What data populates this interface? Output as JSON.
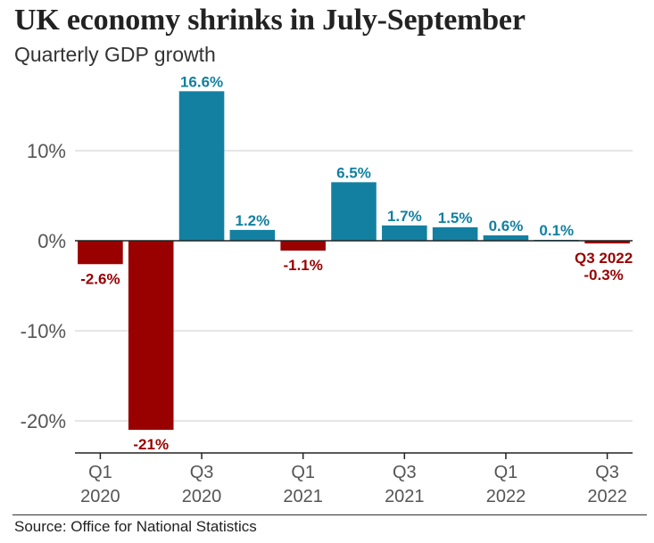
{
  "title": "UK economy shrinks in July-September",
  "subtitle": "Quarterly GDP growth",
  "source": "Source: Office for National Statistics",
  "colors": {
    "positive": "#1380a1",
    "negative": "#990000",
    "grid": "#cccccc",
    "axis": "#222222",
    "tick_text": "#555555"
  },
  "chart_data": {
    "type": "bar",
    "categories": [
      "Q1 2020",
      "Q2 2020",
      "Q3 2020",
      "Q4 2020",
      "Q1 2021",
      "Q2 2021",
      "Q3 2021",
      "Q4 2021",
      "Q1 2022",
      "Q2 2022",
      "Q3 2022"
    ],
    "values": [
      -2.6,
      -21,
      16.6,
      1.2,
      -1.1,
      6.5,
      1.7,
      1.5,
      0.6,
      0.1,
      -0.3
    ],
    "data_labels": [
      "-2.6%",
      "-21%",
      "16.6%",
      "1.2%",
      "-1.1%",
      "6.5%",
      "1.7%",
      "1.5%",
      "0.6%",
      "0.1%",
      "-0.3%"
    ],
    "highlight_label": {
      "index": 10,
      "text": "Q3 2022"
    },
    "y_ticks": [
      10,
      0,
      -10,
      -20
    ],
    "y_tick_labels": [
      "10%",
      "0%",
      "-10%",
      "-20%"
    ],
    "ylim": [
      -23.5,
      17
    ],
    "x_ticks": [
      {
        "index": 0,
        "line1": "Q1",
        "line2": "2020"
      },
      {
        "index": 2,
        "line1": "Q3",
        "line2": "2020"
      },
      {
        "index": 4,
        "line1": "Q1",
        "line2": "2021"
      },
      {
        "index": 6,
        "line1": "Q3",
        "line2": "2021"
      },
      {
        "index": 8,
        "line1": "Q1",
        "line2": "2022"
      },
      {
        "index": 10,
        "line1": "Q3",
        "line2": "2022"
      }
    ],
    "grid": true,
    "legend": "none",
    "xlabel": "",
    "ylabel": ""
  }
}
